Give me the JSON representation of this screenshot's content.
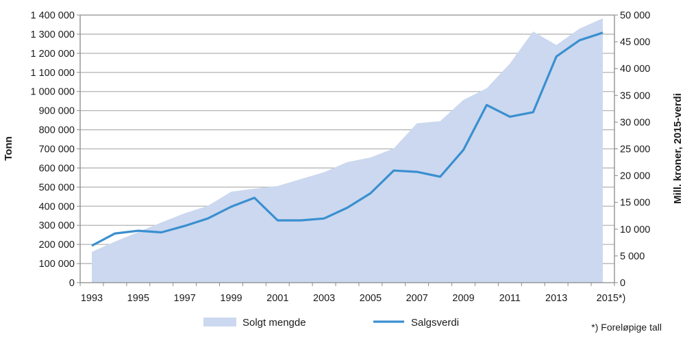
{
  "chart_data": {
    "type": "area+line",
    "categories": [
      "1993",
      "1994",
      "1995",
      "1996",
      "1997",
      "1998",
      "1999",
      "2000",
      "2001",
      "2002",
      "2003",
      "2004",
      "2005",
      "2006",
      "2007",
      "2008",
      "2009",
      "2010",
      "2011",
      "2012",
      "2013",
      "2014",
      "2015*)"
    ],
    "x_tick_labels": [
      "1993",
      "1995",
      "1997",
      "1999",
      "2001",
      "2003",
      "2005",
      "2007",
      "2009",
      "2011",
      "2013",
      "2015*)"
    ],
    "series": [
      {
        "name": "Solgt mengde",
        "type": "area",
        "axis": "left",
        "color": "#cbd8ef",
        "values": [
          161000,
          215000,
          265000,
          315000,
          363000,
          402000,
          476000,
          492000,
          506000,
          542000,
          578000,
          631000,
          655000,
          702000,
          834000,
          845000,
          956000,
          1017000,
          1146000,
          1314000,
          1243000,
          1329000,
          1383000
        ]
      },
      {
        "name": "Salgsverdi",
        "type": "line",
        "axis": "right",
        "color": "#3a8fd0",
        "values": [
          6900,
          9200,
          9700,
          9400,
          10600,
          12000,
          14200,
          15860,
          11640,
          11640,
          12000,
          14000,
          16700,
          20940,
          20700,
          19800,
          24800,
          33200,
          31000,
          31850,
          42250,
          45300,
          46700
        ]
      }
    ],
    "ylabel_left": "Tonn",
    "ylabel_right": "Mill. kroner, 2015-verdi",
    "ylim_left": [
      0,
      1400000
    ],
    "ylim_right": [
      0,
      50000
    ],
    "left_ticks": [
      "0",
      "100 000",
      "200 000",
      "300 000",
      "400 000",
      "500 000",
      "600 000",
      "700 000",
      "800 000",
      "900 000",
      "1 000 000",
      "1 100 000",
      "1 200 000",
      "1 300 000",
      "1 400 000"
    ],
    "right_ticks": [
      "0",
      "5 000",
      "10 000",
      "15 000",
      "20 000",
      "25 000",
      "30 000",
      "35 000",
      "40 000",
      "45 000",
      "50 000"
    ],
    "grid": true,
    "legend_placement": "bottom",
    "note": "*) Foreløpige tall"
  }
}
